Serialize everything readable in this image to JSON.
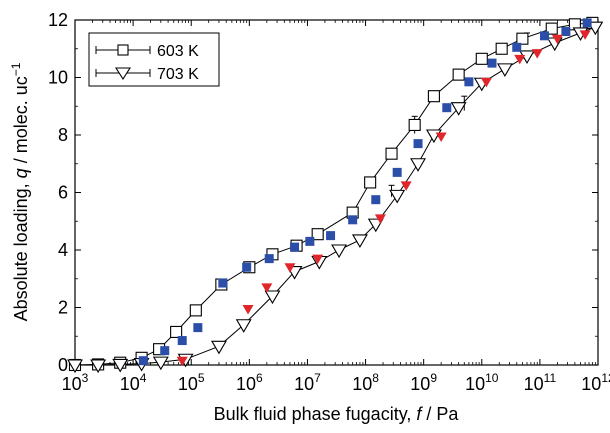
{
  "chart_data": {
    "type": "scatter",
    "xscale": "log",
    "xlim": [
      1000,
      1000000000000
    ],
    "ylim": [
      0,
      12
    ],
    "xlabel_parts": [
      "Bulk fluid phase fugacity, ",
      "f",
      " / Pa"
    ],
    "ylabel_parts": [
      "Absolute loading, ",
      "q",
      " / molec. uc",
      "−1"
    ],
    "x_ticks": [
      {
        "base": "10",
        "exp": "3",
        "value": 1000
      },
      {
        "base": "10",
        "exp": "4",
        "value": 10000
      },
      {
        "base": "10",
        "exp": "5",
        "value": 100000
      },
      {
        "base": "10",
        "exp": "6",
        "value": 1000000
      },
      {
        "base": "10",
        "exp": "7",
        "value": 10000000
      },
      {
        "base": "10",
        "exp": "8",
        "value": 100000000
      },
      {
        "base": "10",
        "exp": "9",
        "value": 1000000000
      },
      {
        "base": "10",
        "exp": "10",
        "value": 10000000000
      },
      {
        "base": "10",
        "exp": "11",
        "value": 100000000000
      },
      {
        "base": "10",
        "exp": "12",
        "value": 1000000000000
      }
    ],
    "y_ticks": [
      "0",
      "2",
      "4",
      "6",
      "8",
      "10",
      "12"
    ],
    "legend_position": "top-left",
    "series": [
      {
        "name": "603 K",
        "marker": "square-open",
        "line": true,
        "color": "#000000",
        "points": [
          [
            1000,
            0.0
          ],
          [
            2500,
            0.02
          ],
          [
            6000,
            0.08
          ],
          [
            14000,
            0.25
          ],
          [
            28000,
            0.55
          ],
          [
            55000,
            1.15
          ],
          [
            120000,
            1.9
          ],
          [
            330000,
            2.8
          ],
          [
            1000000,
            3.4
          ],
          [
            2500000,
            3.85
          ],
          [
            6500000,
            4.15
          ],
          [
            15000000,
            4.55
          ],
          [
            60000000,
            5.3
          ],
          [
            120000000,
            6.35
          ],
          [
            280000000,
            7.35
          ],
          [
            700000000,
            8.35
          ],
          [
            1500000000,
            9.35
          ],
          [
            4000000000,
            10.1
          ],
          [
            10000000000,
            10.65
          ],
          [
            22000000000,
            11.0
          ],
          [
            50000000000,
            11.35
          ],
          [
            160000000000,
            11.7
          ],
          [
            400000000000,
            11.85
          ],
          [
            800000000000,
            11.9
          ]
        ]
      },
      {
        "name": "703 K",
        "marker": "triangle-down-open",
        "line": true,
        "color": "#000000",
        "points": [
          [
            1000,
            0.0
          ],
          [
            2500,
            0.0
          ],
          [
            6000,
            0.02
          ],
          [
            14000,
            0.05
          ],
          [
            30000,
            0.1
          ],
          [
            80000,
            0.2
          ],
          [
            300000,
            0.65
          ],
          [
            800000,
            1.4
          ],
          [
            2500000,
            2.4
          ],
          [
            6000000,
            3.25
          ],
          [
            16000000,
            3.6
          ],
          [
            35000000,
            4.0
          ],
          [
            80000000,
            4.35
          ],
          [
            150000000,
            4.9
          ],
          [
            350000000,
            5.9
          ],
          [
            800000000,
            7.0
          ],
          [
            1500000000,
            8.0
          ],
          [
            4000000000,
            8.95
          ],
          [
            10000000000,
            9.8
          ],
          [
            25000000000,
            10.3
          ],
          [
            60000000000,
            10.75
          ],
          [
            180000000000,
            11.2
          ],
          [
            500000000000,
            11.55
          ],
          [
            900000000000,
            11.75
          ]
        ]
      },
      {
        "name": "",
        "marker": "square-filled",
        "line": false,
        "color": "#2b4fa8",
        "points": [
          [
            15000,
            0.15
          ],
          [
            35000,
            0.5
          ],
          [
            70000,
            0.85
          ],
          [
            130000,
            1.3
          ],
          [
            350000,
            2.85
          ],
          [
            900000,
            3.4
          ],
          [
            2200000,
            3.7
          ],
          [
            6000000,
            4.1
          ],
          [
            11000000,
            4.3
          ],
          [
            25000000,
            4.5
          ],
          [
            60000000,
            5.05
          ],
          [
            150000000,
            5.75
          ],
          [
            350000000,
            6.7
          ],
          [
            800000000,
            7.7
          ],
          [
            2500000000,
            8.95
          ],
          [
            6000000000,
            9.85
          ],
          [
            15000000000,
            10.5
          ],
          [
            40000000000,
            11.05
          ],
          [
            120000000000,
            11.45
          ],
          [
            280000000000,
            11.6
          ],
          [
            650000000000,
            11.9
          ]
        ]
      },
      {
        "name": "",
        "marker": "triangle-down-filled",
        "line": false,
        "color": "#e0262a",
        "points": [
          [
            70000,
            0.15
          ],
          [
            950000,
            1.95
          ],
          [
            2000000,
            2.7
          ],
          [
            5000000,
            3.4
          ],
          [
            15000000,
            3.7
          ],
          [
            180000000,
            5.1
          ],
          [
            500000000,
            6.25
          ],
          [
            2000000000,
            7.95
          ],
          [
            12000000000,
            9.85
          ],
          [
            45000000000,
            10.65
          ],
          [
            90000000000,
            10.85
          ],
          [
            200000000000,
            11.35
          ],
          [
            600000000000,
            11.5
          ]
        ]
      }
    ],
    "error_bars": [
      {
        "x": 700000000,
        "y": 8.35,
        "err": 0.3
      },
      {
        "x": 5000000000,
        "y": 9.1,
        "err": 0.25
      },
      {
        "x": 60000000000,
        "y": 11.35,
        "err": 0.2
      },
      {
        "x": 280000000,
        "y": 6.05,
        "err": 0.2
      }
    ]
  }
}
